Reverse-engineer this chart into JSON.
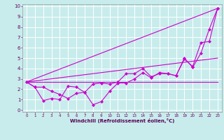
{
  "background_color": "#c8ecec",
  "grid_color": "#aadddd",
  "plot_bg": "#c8ecec",
  "line_color": "#cc00cc",
  "marker_color": "#cc00cc",
  "xlabel": "Windchill (Refroidissement éolien,°C)",
  "xlim": [
    -0.5,
    23.5
  ],
  "ylim": [
    -0.2,
    10.2
  ],
  "xticks": [
    0,
    1,
    2,
    3,
    4,
    5,
    6,
    7,
    8,
    9,
    10,
    11,
    12,
    13,
    14,
    15,
    16,
    17,
    18,
    19,
    20,
    21,
    22,
    23
  ],
  "yticks": [
    0,
    1,
    2,
    3,
    4,
    5,
    6,
    7,
    8,
    9,
    10
  ],
  "line1_x": [
    0,
    1,
    2,
    3,
    4,
    5,
    6,
    7,
    8,
    9,
    10,
    11,
    12,
    13,
    14,
    15,
    16,
    17,
    18,
    19,
    20,
    21,
    22,
    23
  ],
  "line1_y": [
    2.7,
    2.2,
    2.2,
    1.8,
    1.5,
    1.1,
    1.6,
    1.7,
    2.5,
    2.6,
    2.5,
    2.7,
    3.5,
    3.5,
    4.0,
    3.2,
    3.5,
    3.5,
    3.3,
    5.0,
    4.1,
    5.5,
    7.8,
    9.8
  ],
  "line2_x": [
    0,
    1,
    2,
    3,
    4,
    5,
    6,
    7,
    8,
    9,
    10,
    11,
    12,
    13,
    14,
    15,
    16,
    17,
    18,
    19,
    20,
    21,
    22,
    23
  ],
  "line2_y": [
    2.7,
    2.2,
    0.9,
    1.1,
    1.0,
    2.3,
    2.2,
    1.7,
    0.5,
    0.8,
    1.8,
    2.6,
    2.6,
    3.0,
    3.6,
    3.1,
    3.6,
    3.5,
    3.3,
    4.9,
    4.2,
    6.5,
    6.6,
    9.8
  ],
  "line3_x": [
    0,
    23
  ],
  "line3_y": [
    2.7,
    9.8
  ],
  "line4_x": [
    0,
    23
  ],
  "line4_y": [
    2.7,
    5.0
  ],
  "line5_x": [
    0,
    23
  ],
  "line5_y": [
    2.7,
    2.7
  ]
}
